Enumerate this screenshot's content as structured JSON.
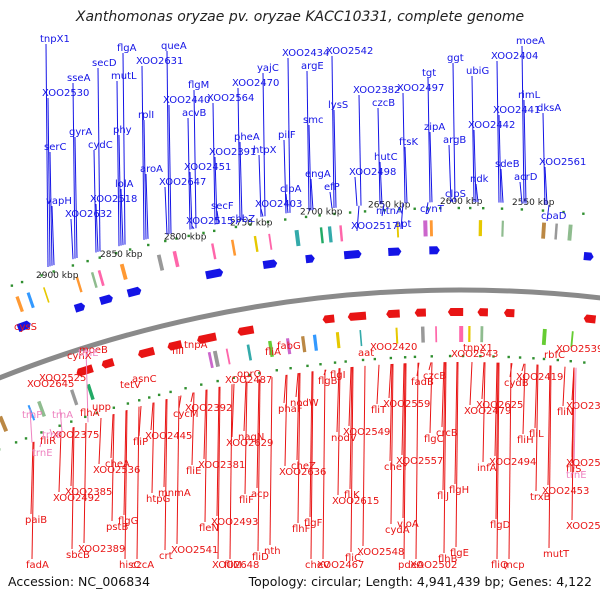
{
  "title": "Xanthomonas oryzae pv. oryzae KACC10331, complete genome",
  "footer": {
    "accession": "Accession: NC_006834",
    "stats": "Topology: circular; Length: 4,941,439 bp; Genes: 4,122"
  },
  "colors": {
    "plus_strand": "#1414e6",
    "minus_strand": "#e81414",
    "rna_label": "#ee82c0",
    "backbone": "#8a8a8a",
    "gc_tick": "#2f8f2f"
  },
  "scale_labels": [
    "2900 kbp",
    "2850 kbp",
    "2800 kbp",
    "2750 kbp",
    "2700 kbp",
    "2650 kbp",
    "2600 kbp",
    "2550 kbp"
  ],
  "top_genes": [
    "tnpX1",
    "mutL",
    "acvB",
    "htpX",
    "efP",
    "apt",
    "ubiG",
    "dksA",
    "cydC",
    "XOO2647",
    "cbbZ",
    "argE",
    "czcB",
    "argB",
    "acrD",
    "XOO2632",
    "XOO2631",
    "XOO2564",
    "pilF",
    "XOO2498",
    "cynT",
    "XOO2404",
    "XOO2530",
    "phy",
    "XOO2451",
    "XOO2403",
    "XOO2542",
    "XOO2497",
    "XOO2442",
    "XOO2561",
    "XOO2518",
    "queA",
    "XOO2470",
    "smc",
    "hutC",
    "clpS",
    "moeA",
    "sseA",
    "rplI",
    "XOO2391",
    "clpA",
    "XOO2517",
    "tgt",
    "XOO2441",
    "serC",
    "lolA",
    "XOO2515",
    "yajC",
    "lysS",
    "ftsK",
    "ndk",
    "coaD",
    "secD",
    "XOO2440",
    "pheA",
    "engA",
    "mtnA",
    "ggt",
    "rimL",
    "gyrA",
    "aroA",
    "secF",
    "XOO2434",
    "XOO2382",
    "zipA",
    "sdeB",
    "vapH",
    "flgA",
    "flgM"
  ],
  "bottom_genes": [
    "cysS",
    "cynX",
    "tetV",
    "cycM",
    "XOO2629",
    "XOO2636",
    "XOO2615",
    "cydA",
    "flhB",
    "fliQ",
    "rbfC",
    "XOO2645",
    "flhA",
    "fliP",
    "fliE",
    "fliF",
    "flhF",
    "fliC",
    "pdeA",
    "XOO2543",
    "cydB",
    "fliN",
    "fliR",
    "XOO2536",
    "htpG",
    "fleN",
    "fliD",
    "cheV",
    "aat",
    "fadB",
    "XOO2479",
    "fliH",
    "fliS",
    "XOO2492",
    "pstB",
    "crt",
    "XOO2648",
    "fliA",
    "flgB",
    "fliT",
    "flgC",
    "infA",
    "trxB",
    "XOO2524",
    "sbcB",
    "hisC",
    "fliI",
    "XOO2487",
    "phaF",
    "nodV",
    "cheY",
    "fliJ",
    "flgD",
    "mutT",
    "fadA",
    "moeB",
    "asnC",
    "XOO2392",
    "nagN",
    "cheZ",
    "fliK",
    "vioA",
    "flgE",
    "mcp",
    "XOO2539",
    "XOO2525",
    "upp",
    "XOO2445",
    "XOO2381",
    "acp",
    "flgF",
    "XOO2548",
    "XOO2502",
    "tnpX1",
    "XOO2419",
    "XOO2394",
    "XOO2375",
    "cheA",
    "mnmA",
    "XOO2493",
    "nth",
    "XOO2467",
    "XOO2420",
    "czcB",
    "XOO2625",
    "fliL",
    "XOO2526",
    "XOO2385",
    "flgG",
    "XOO2541",
    "fliM",
    "fabG",
    "flgI",
    "XOO2559",
    "crcB",
    "XOO2494",
    "XOO2453",
    "paiB",
    "XOO2389",
    "czcA",
    "tnpA",
    "oprO",
    "nodW",
    "XOO2549",
    "XOO2557",
    "flgH"
  ],
  "rna_genes": [
    "trnE",
    "trnP",
    "trnA",
    "trnE",
    "trnE",
    "trnE"
  ]
}
